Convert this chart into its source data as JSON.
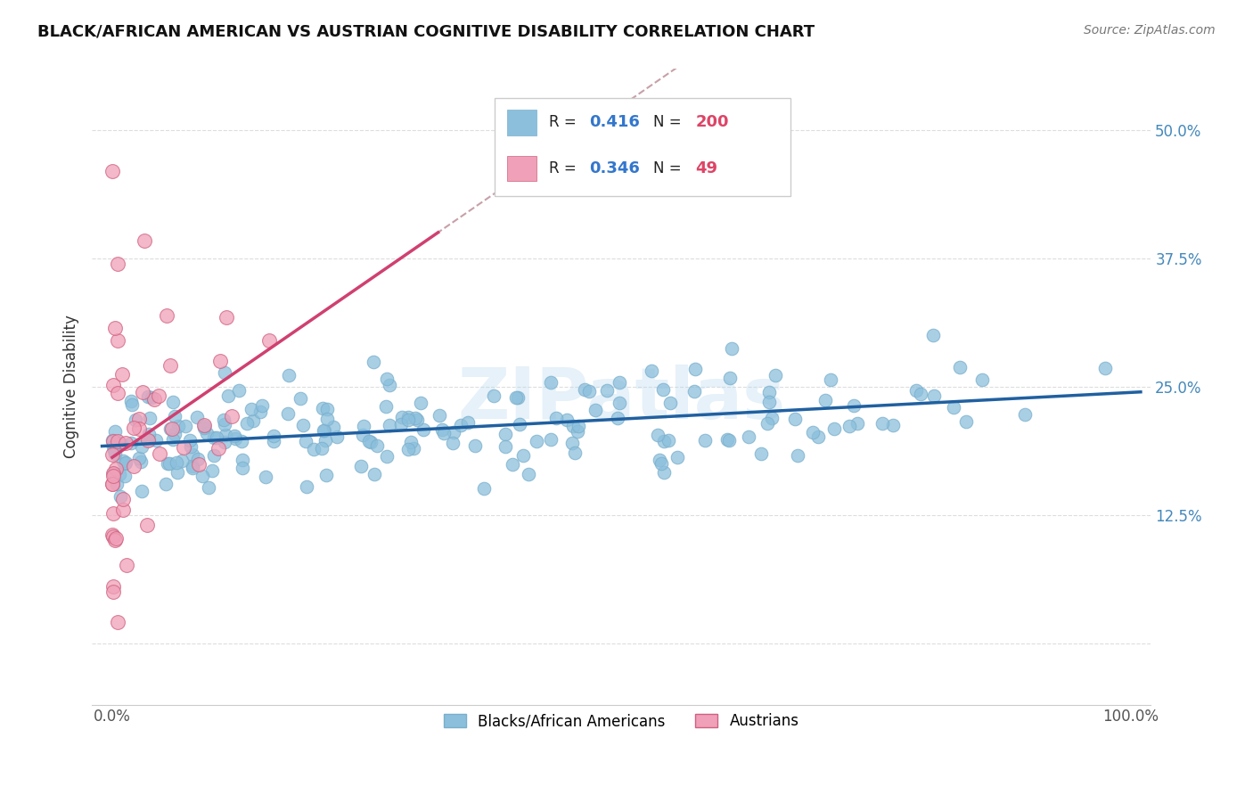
{
  "title": "BLACK/AFRICAN AMERICAN VS AUSTRIAN COGNITIVE DISABILITY CORRELATION CHART",
  "source": "Source: ZipAtlas.com",
  "ylabel": "Cognitive Disability",
  "legend_label_1": "Blacks/African Americans",
  "legend_label_2": "Austrians",
  "R1": 0.416,
  "N1": 200,
  "R2": 0.346,
  "N2": 49,
  "color_blue": "#8BBFDC",
  "color_blue_edge": "#7AAFCC",
  "color_blue_line": "#2060A0",
  "color_pink": "#F0A0B8",
  "color_pink_edge": "#D06080",
  "color_pink_line": "#D04070",
  "color_dashed_line": "#C8A0A8",
  "watermark_color": "#B8D8F0",
  "xlim": [
    -0.02,
    1.02
  ],
  "ylim": [
    -0.06,
    0.56
  ],
  "yticks": [
    0.0,
    0.125,
    0.25,
    0.375,
    0.5
  ],
  "ytick_labels": [
    "",
    "12.5%",
    "25.0%",
    "37.5%",
    "50.0%"
  ],
  "xtick_labels": [
    "0.0%",
    "100.0%"
  ],
  "background_color": "#FFFFFF",
  "seed": 42
}
